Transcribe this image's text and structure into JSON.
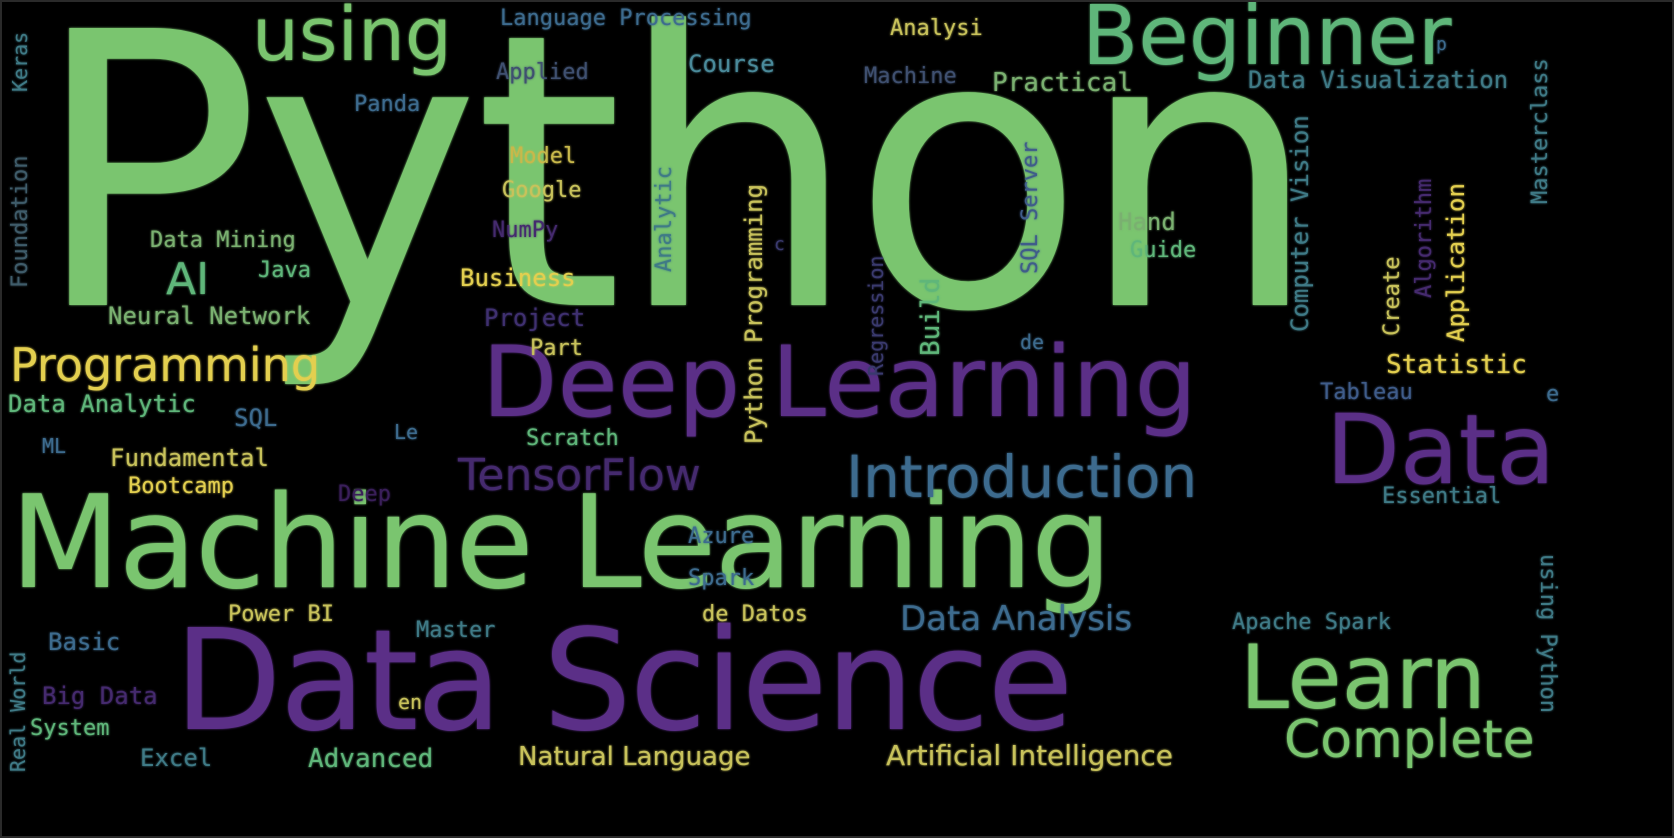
{
  "palette": {
    "background": "#000000",
    "green_bright": "#7ac56f",
    "green_mid": "#5fb67a",
    "teal": "#4a9b8e",
    "blue": "#3d6b8e",
    "purple": "#5b2f87",
    "yellow": "#e3cf4f",
    "olive": "#c8c25b",
    "gray_blue": "#3f5c6a"
  },
  "words": [
    "Python",
    "Machine Learning",
    "Data Science",
    "Deep Learning",
    "Data",
    "Beginner",
    "using",
    "Learn",
    "Complete",
    "Introduction",
    "TensorFlow",
    "Programming",
    "AI",
    "Data Analysis",
    "Artificial Intelligence",
    "Natural Language",
    "Language Processing",
    "Applied",
    "Course",
    "Analysi",
    "Machine",
    "Practical",
    "Data Visualization",
    "Masterclass",
    "Keras",
    "Foundation",
    "Panda",
    "Model",
    "Google",
    "Data Mining",
    "Java",
    "NumPy",
    "Neural Network",
    "Business",
    "Project",
    "Part",
    "Data Analytic",
    "SQL",
    "ML",
    "Le",
    "Fundamental",
    "Bootcamp",
    "Deep",
    "Scratch",
    "Python Programming",
    "Analytic",
    "SQL Server",
    "Regression",
    "Build",
    "Hand",
    "Guide",
    "Computer Vision",
    "Create",
    "Algorithm",
    "Application",
    "Statistic",
    "Tableau",
    "de",
    "c",
    "Essential",
    "Azure",
    "Spark",
    "Power BI",
    "de Datos",
    "Master",
    "Apache Spark",
    "Basic",
    "Big Data",
    "en",
    "System",
    "Excel",
    "Advanced",
    "Real World",
    "using Python",
    "e",
    "p"
  ]
}
